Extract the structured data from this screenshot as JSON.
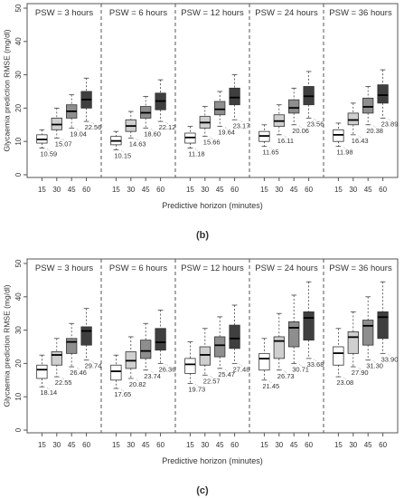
{
  "figure": {
    "panels": [
      {
        "caption": "(b)",
        "xlabel": "Predictive horizon (minutes)",
        "ylabel": "Glycaemia prediction RMSE (mg/dl)"
      },
      {
        "caption": "(c)",
        "xlabel": "Predictive horizon (minutes)",
        "ylabel": "Glycaemia prediction RMSE (mg/dl)"
      }
    ]
  },
  "colors": {
    "box_15": "#ffffff",
    "box_30": "#cfcfcf",
    "box_45": "#8e8e8e",
    "box_60": "#3f3f3f",
    "median_text": "#1a4f6e",
    "frame": "#555555"
  },
  "chart_data": [
    {
      "type": "boxplot",
      "panel_caption": "(b)",
      "xlabel": "Predictive horizon (minutes)",
      "ylabel": "Glycaemia prediction RMSE (mg/dl)",
      "ylim": [
        0,
        50
      ],
      "yticks": [
        0,
        10,
        20,
        30,
        40,
        50
      ],
      "horizons": [
        "15",
        "30",
        "45",
        "60"
      ],
      "groups": [
        {
          "label": "PSW = 3 hours",
          "boxes": [
            {
              "whisker_low": 8,
              "q1": 9.5,
              "median": 10.59,
              "q3": 12,
              "whisker_high": 13.5
            },
            {
              "whisker_low": 11,
              "q1": 13.5,
              "median": 15.07,
              "q3": 17,
              "whisker_high": 20
            },
            {
              "whisker_low": 14,
              "q1": 17,
              "median": 19.04,
              "q3": 21,
              "whisker_high": 24
            },
            {
              "whisker_low": 16,
              "q1": 20,
              "median": 22.56,
              "q3": 25,
              "whisker_high": 29
            }
          ],
          "median_labels": [
            "10.59",
            "15.07",
            "19.04",
            "22.56"
          ]
        },
        {
          "label": "PSW = 6 hours",
          "boxes": [
            {
              "whisker_low": 7.5,
              "q1": 9,
              "median": 10.15,
              "q3": 11.5,
              "whisker_high": 13
            },
            {
              "whisker_low": 11,
              "q1": 13,
              "median": 14.63,
              "q3": 16.5,
              "whisker_high": 19
            },
            {
              "whisker_low": 14,
              "q1": 17,
              "median": 18.6,
              "q3": 20.5,
              "whisker_high": 23.5
            },
            {
              "whisker_low": 16,
              "q1": 19.5,
              "median": 22.12,
              "q3": 24.5,
              "whisker_high": 28.5
            }
          ],
          "median_labels": [
            "10.15",
            "14.63",
            "18.60",
            "22.12"
          ]
        },
        {
          "label": "PSW = 12 hours",
          "boxes": [
            {
              "whisker_low": 8,
              "q1": 9.5,
              "median": 11.18,
              "q3": 12.5,
              "whisker_high": 14.5
            },
            {
              "whisker_low": 11.5,
              "q1": 14,
              "median": 15.66,
              "q3": 17.5,
              "whisker_high": 20.5
            },
            {
              "whisker_low": 14.5,
              "q1": 18,
              "median": 19.64,
              "q3": 22,
              "whisker_high": 25
            },
            {
              "whisker_low": 16.5,
              "q1": 21,
              "median": 23.17,
              "q3": 26,
              "whisker_high": 30
            }
          ],
          "median_labels": [
            "11.18",
            "15.66",
            "19.64",
            "23.17"
          ]
        },
        {
          "label": "PSW = 24 hours",
          "boxes": [
            {
              "whisker_low": 8.5,
              "q1": 10,
              "median": 11.65,
              "q3": 13,
              "whisker_high": 15
            },
            {
              "whisker_low": 12,
              "q1": 14.5,
              "median": 16.11,
              "q3": 18,
              "whisker_high": 21
            },
            {
              "whisker_low": 15,
              "q1": 18.5,
              "median": 20.06,
              "q3": 22.5,
              "whisker_high": 26
            },
            {
              "whisker_low": 17,
              "q1": 21,
              "median": 23.56,
              "q3": 26.5,
              "whisker_high": 31
            }
          ],
          "median_labels": [
            "11.65",
            "16.11",
            "20.06",
            "23.56"
          ]
        },
        {
          "label": "PSW = 36 hours",
          "boxes": [
            {
              "whisker_low": 8.5,
              "q1": 10,
              "median": 11.98,
              "q3": 13.5,
              "whisker_high": 15.5
            },
            {
              "whisker_low": 12,
              "q1": 15,
              "median": 16.43,
              "q3": 18.5,
              "whisker_high": 21.5
            },
            {
              "whisker_low": 15,
              "q1": 18.5,
              "median": 20.38,
              "q3": 23,
              "whisker_high": 26.5
            },
            {
              "whisker_low": 17,
              "q1": 21.5,
              "median": 23.89,
              "q3": 27,
              "whisker_high": 31.5
            }
          ],
          "median_labels": [
            "11.98",
            "16.43",
            "20.38",
            "23.89"
          ]
        }
      ]
    },
    {
      "type": "boxplot",
      "panel_caption": "(c)",
      "xlabel": "Predictive horizon (minutes)",
      "ylabel": "Glycaemia prediction RMSE (mg/dl)",
      "ylim": [
        0,
        50
      ],
      "yticks": [
        0,
        10,
        20,
        30,
        40,
        50
      ],
      "horizons": [
        "15",
        "30",
        "45",
        "60"
      ],
      "groups": [
        {
          "label": "PSW = 3 hours",
          "boxes": [
            {
              "whisker_low": 13,
              "q1": 15.5,
              "median": 18.14,
              "q3": 19.5,
              "whisker_high": 22.5
            },
            {
              "whisker_low": 16,
              "q1": 19.5,
              "median": 22.55,
              "q3": 23.5,
              "whisker_high": 27.5
            },
            {
              "whisker_low": 19,
              "q1": 23,
              "median": 26.46,
              "q3": 27.5,
              "whisker_high": 32
            },
            {
              "whisker_low": 21,
              "q1": 25.5,
              "median": 29.74,
              "q3": 31,
              "whisker_high": 36.5
            }
          ],
          "median_labels": [
            "18.14",
            "22.55",
            "26.46",
            "29.74"
          ]
        },
        {
          "label": "PSW = 6 hours",
          "boxes": [
            {
              "whisker_low": 12.5,
              "q1": 15,
              "median": 17.65,
              "q3": 19.5,
              "whisker_high": 22.5
            },
            {
              "whisker_low": 15.5,
              "q1": 18.5,
              "median": 20.82,
              "q3": 23.5,
              "whisker_high": 28
            },
            {
              "whisker_low": 18,
              "q1": 21.5,
              "median": 23.74,
              "q3": 27,
              "whisker_high": 32
            },
            {
              "whisker_low": 20,
              "q1": 24,
              "median": 26.36,
              "q3": 30.5,
              "whisker_high": 36
            }
          ],
          "median_labels": [
            "17.65",
            "20.82",
            "23.74",
            "26.36"
          ]
        },
        {
          "label": "PSW = 12 hours",
          "boxes": [
            {
              "whisker_low": 14,
              "q1": 17,
              "median": 19.73,
              "q3": 21.5,
              "whisker_high": 26.5
            },
            {
              "whisker_low": 16.5,
              "q1": 19.5,
              "median": 22.57,
              "q3": 25,
              "whisker_high": 30.5
            },
            {
              "whisker_low": 18.5,
              "q1": 22,
              "median": 25.47,
              "q3": 28,
              "whisker_high": 34
            },
            {
              "whisker_low": 20,
              "q1": 24.5,
              "median": 27.48,
              "q3": 31.5,
              "whisker_high": 37.5
            }
          ],
          "median_labels": [
            "19.73",
            "22.57",
            "25.47",
            "27.48"
          ]
        },
        {
          "label": "PSW = 24 hours",
          "boxes": [
            {
              "whisker_low": 15,
              "q1": 18,
              "median": 21.45,
              "q3": 23,
              "whisker_high": 27.5
            },
            {
              "whisker_low": 18,
              "q1": 21.5,
              "median": 26.73,
              "q3": 28,
              "whisker_high": 35
            },
            {
              "whisker_low": 20,
              "q1": 25,
              "median": 30.71,
              "q3": 32.5,
              "whisker_high": 40.5
            },
            {
              "whisker_low": 21.5,
              "q1": 27,
              "median": 33.68,
              "q3": 35.5,
              "whisker_high": 44.5
            }
          ],
          "median_labels": [
            "21.45",
            "26.73",
            "30.71",
            "33.68"
          ]
        },
        {
          "label": "PSW = 36 hours",
          "boxes": [
            {
              "whisker_low": 16,
              "q1": 19.5,
              "median": 23.08,
              "q3": 25,
              "whisker_high": 30.5
            },
            {
              "whisker_low": 19,
              "q1": 23,
              "median": 27.9,
              "q3": 29.5,
              "whisker_high": 35.5
            },
            {
              "whisker_low": 21,
              "q1": 25.5,
              "median": 31.3,
              "q3": 33,
              "whisker_high": 40
            },
            {
              "whisker_low": 23,
              "q1": 27.5,
              "median": 33.9,
              "q3": 35.5,
              "whisker_high": 44.5
            }
          ],
          "median_labels": [
            "23.08",
            "27.90",
            "31.30",
            "33.90"
          ]
        }
      ]
    }
  ]
}
